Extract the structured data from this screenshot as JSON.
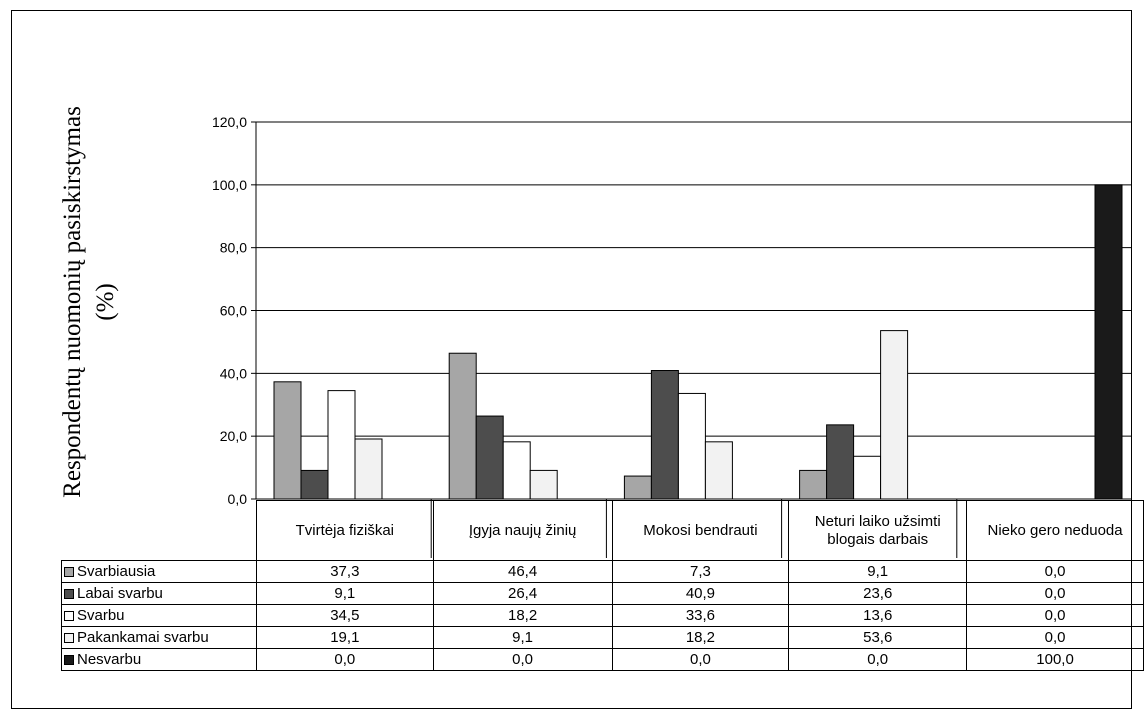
{
  "chart_data": {
    "type": "bar",
    "title": "",
    "ylabel": "Respondentų nuomonių pasiskirstymas (%)",
    "xlabel": "",
    "ylim": [
      0,
      120
    ],
    "yticks": [
      "0,0",
      "20,0",
      "40,0",
      "60,0",
      "80,0",
      "100,0",
      "120,0"
    ],
    "grid": true,
    "legend": "data-table-below",
    "categories": [
      "Tvirtėja fiziškai",
      "Įgyja naujų žinių",
      "Mokosi bendrauti",
      "Neturi laiko užsimti blogais darbais",
      "Nieko gero neduoda"
    ],
    "series": [
      {
        "name": "Svarbiausia",
        "color": "#a6a6a6",
        "values": [
          37.3,
          46.4,
          7.3,
          9.1,
          0.0
        ],
        "labels": [
          "37,3",
          "46,4",
          "7,3",
          "9,1",
          "0,0"
        ]
      },
      {
        "name": "Labai svarbu",
        "color": "#4d4d4d",
        "values": [
          9.1,
          26.4,
          40.9,
          23.6,
          0.0
        ],
        "labels": [
          "9,1",
          "26,4",
          "40,9",
          "23,6",
          "0,0"
        ]
      },
      {
        "name": "Svarbu",
        "color": "#ffffff",
        "values": [
          34.5,
          18.2,
          33.6,
          13.6,
          0.0
        ],
        "labels": [
          "34,5",
          "18,2",
          "33,6",
          "13,6",
          "0,0"
        ]
      },
      {
        "name": "Pakankamai svarbu",
        "color": "#f2f2f2",
        "values": [
          19.1,
          9.1,
          18.2,
          53.6,
          0.0
        ],
        "labels": [
          "19,1",
          "9,1",
          "18,2",
          "53,6",
          "0,0"
        ]
      },
      {
        "name": "Nesvarbu",
        "color": "#1a1a1a",
        "values": [
          0.0,
          0.0,
          0.0,
          0.0,
          100.0
        ],
        "labels": [
          "0,0",
          "0,0",
          "0,0",
          "0,0",
          "100,0"
        ]
      }
    ]
  }
}
